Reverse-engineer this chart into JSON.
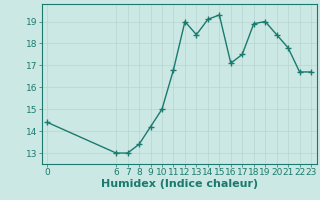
{
  "x": [
    0,
    6,
    7,
    8,
    9,
    10,
    11,
    12,
    13,
    14,
    15,
    16,
    17,
    18,
    19,
    20,
    21,
    22,
    23
  ],
  "y": [
    14.4,
    13.0,
    13.0,
    13.4,
    14.2,
    15.0,
    16.8,
    19.0,
    18.4,
    19.1,
    19.3,
    17.1,
    17.5,
    18.9,
    19.0,
    18.4,
    17.8,
    16.7,
    16.7
  ],
  "line_color": "#1a7a6e",
  "marker": "+",
  "marker_size": 4,
  "bg_color": "#cce8e4",
  "grid_color_major": "#b8d4d0",
  "grid_color_minor": "#c8e0dc",
  "xlabel": "Humidex (Indice chaleur)",
  "xlabel_fontsize": 8,
  "ylim": [
    12.5,
    19.8
  ],
  "xlim": [
    -0.5,
    23.5
  ],
  "yticks": [
    13,
    14,
    15,
    16,
    17,
    18,
    19
  ],
  "xticks": [
    0,
    6,
    7,
    8,
    9,
    10,
    11,
    12,
    13,
    14,
    15,
    16,
    17,
    18,
    19,
    20,
    21,
    22,
    23
  ],
  "tick_fontsize": 6.5,
  "linewidth": 1.0
}
